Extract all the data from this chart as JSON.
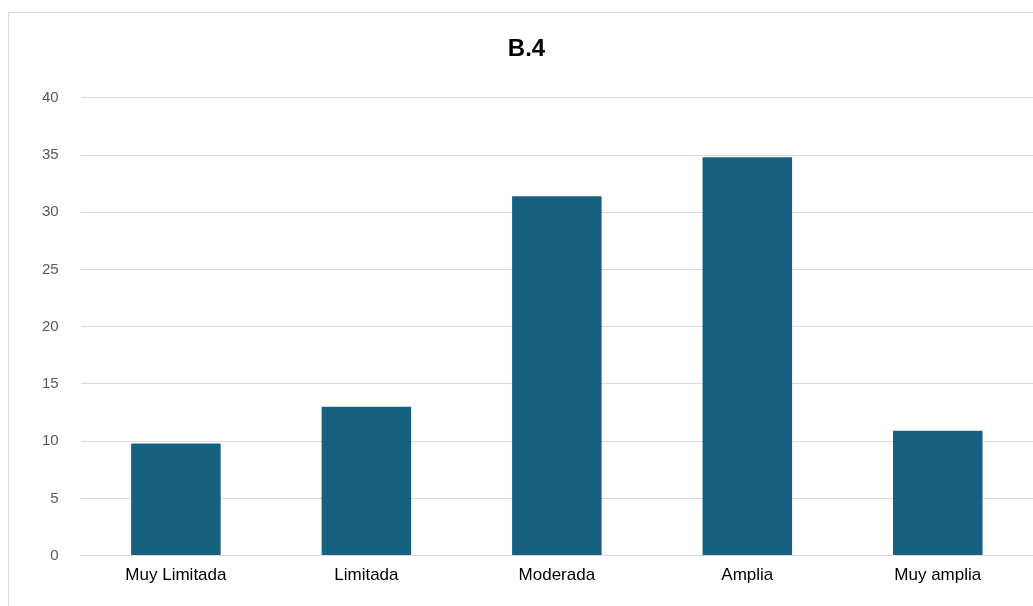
{
  "chart_data": {
    "type": "bar",
    "title": "B.4",
    "categories": [
      "Muy Limitada",
      "Limitada",
      "Moderada",
      "Amplia",
      "Muy amplia"
    ],
    "values": [
      9.8,
      13.0,
      31.4,
      34.8,
      10.9
    ],
    "color": "#17607f",
    "ylim": [
      0,
      40
    ],
    "yticks": [
      0,
      5,
      10,
      15,
      20,
      25,
      30,
      35,
      40
    ],
    "grid": "y",
    "legend": false
  }
}
